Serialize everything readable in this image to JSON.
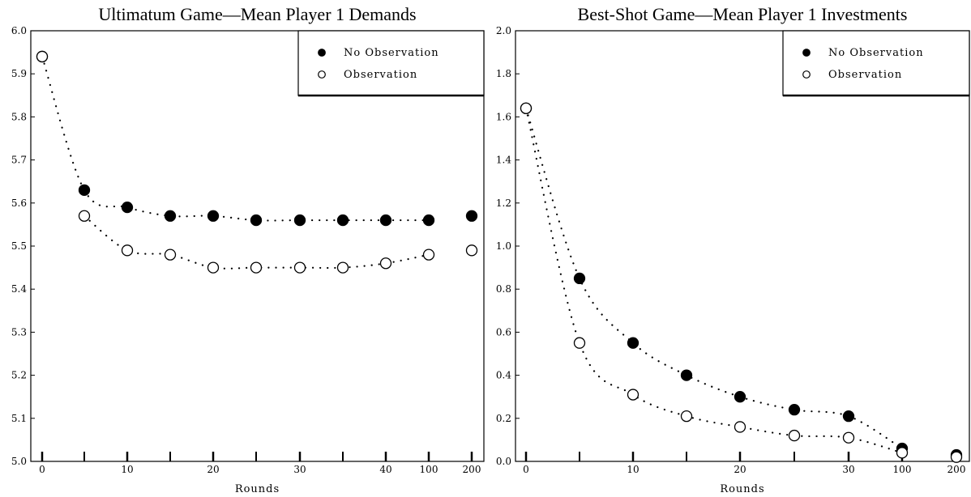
{
  "chart_data": [
    {
      "type": "scatter",
      "title": "Ultimatum Game—Mean Player 1 Demands",
      "xlabel": "Rounds",
      "ylabel": "",
      "categories": [
        "0",
        "5",
        "10",
        "15",
        "20",
        "25",
        "30",
        "35",
        "40",
        "100",
        "200"
      ],
      "x_tick_labels": [
        "0",
        "10",
        "20",
        "30",
        "40",
        "100",
        "200"
      ],
      "ylim": [
        5.0,
        6.0
      ],
      "y_ticks": [
        "5.0",
        "5.1",
        "5.2",
        "5.3",
        "5.4",
        "5.5",
        "5.6",
        "5.7",
        "5.8",
        "5.9",
        "6.0"
      ],
      "legend_position": "top-right",
      "series": [
        {
          "name": "No Observation",
          "marker": "filled-circle",
          "values": [
            5.94,
            5.63,
            5.59,
            5.57,
            5.57,
            5.56,
            5.56,
            5.56,
            5.56,
            5.56,
            5.57
          ],
          "trend_through": 9
        },
        {
          "name": "Observation",
          "marker": "open-circle",
          "values": [
            5.94,
            5.57,
            5.49,
            5.48,
            5.45,
            5.45,
            5.45,
            5.45,
            5.46,
            5.48,
            5.49
          ],
          "trend_from": 1,
          "trend_through": 9
        }
      ]
    },
    {
      "type": "scatter",
      "title": "Best-Shot Game—Mean Player 1 Investments",
      "xlabel": "Rounds",
      "ylabel": "",
      "categories": [
        "0",
        "5",
        "10",
        "15",
        "20",
        "25",
        "30",
        "100",
        "200"
      ],
      "x_tick_labels": [
        "0",
        "10",
        "20",
        "30",
        "100",
        "200"
      ],
      "ylim": [
        0.0,
        2.0
      ],
      "y_ticks": [
        "0.0",
        "0.2",
        "0.4",
        "0.6",
        "0.8",
        "1.0",
        "1.2",
        "1.4",
        "1.6",
        "1.8",
        "2.0"
      ],
      "legend_position": "top-right",
      "series": [
        {
          "name": "No Observation",
          "marker": "filled-circle",
          "values": [
            1.64,
            0.85,
            0.55,
            0.4,
            0.3,
            0.24,
            0.21,
            0.06,
            0.03
          ],
          "trend_through": 7
        },
        {
          "name": "Observation",
          "marker": "open-circle",
          "values": [
            1.64,
            0.55,
            0.31,
            0.21,
            0.16,
            0.12,
            0.11,
            0.04,
            0.02
          ],
          "trend_through": 7
        }
      ]
    }
  ]
}
